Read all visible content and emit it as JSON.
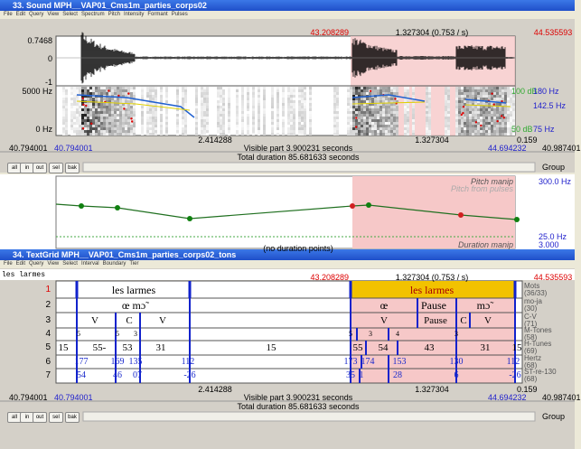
{
  "sound_window": {
    "title": "33. Sound MPH__VAP01_Cms1m_parties_corps02",
    "menu": [
      "File",
      "Edit",
      "Query",
      "View",
      "Select",
      "Spectrum",
      "Pitch",
      "Intensity",
      "Formant",
      "Pulses"
    ],
    "selection_start": "43.208289",
    "selection_duration": "1.327304 (0.753 / s)",
    "selection_end": "44.535593",
    "amplitude_labels": [
      "0.7468",
      "0",
      "-1"
    ],
    "frequency_labels": [
      "5000 Hz",
      "0 Hz"
    ],
    "right_labels": [
      "100 dB",
      "180 Hz",
      "142.5 Hz",
      "50 dB",
      "75 Hz"
    ],
    "time_labels": [
      "2.414288",
      "1.327304",
      "0.159"
    ],
    "window_start": "40.794001",
    "visible_start": "40.794001",
    "visible_part": "Visible part 3.900231 seconds",
    "visible_end": "44.694232",
    "window_end": "40.987401",
    "total_duration": "Total duration 85.681633 seconds",
    "buttons": [
      "all",
      "in",
      "out",
      "sel",
      "bak"
    ],
    "group": "Group"
  },
  "manipulation": {
    "pitch_label": "Pitch manip",
    "pitch_from": "Pitch from pulses",
    "pitch_top": "300.0 Hz",
    "pitch_bottom": "25.0 Hz",
    "duration_note": "(no duration points)",
    "duration_label": "Duration manip",
    "duration_value": "3.000"
  },
  "textgrid_window": {
    "title": "34. TextGrid MPH__VAP01_Cms1m_parties_corps02_tons",
    "menu": [
      "File",
      "Edit",
      "Query",
      "View",
      "Select",
      "Interval",
      "Boundary",
      "Tier"
    ],
    "text_field": "les larmes",
    "selection_start": "43.208289",
    "selection_duration": "1.327304 (0.753 / s)",
    "selection_end": "44.535593",
    "tiers": [
      {
        "number": "1",
        "name": "Mots",
        "count": "(36/33)",
        "intervals": [
          "les larmes",
          "les larmes"
        ]
      },
      {
        "number": "2",
        "name": "mo-ja",
        "count": "(30)",
        "intervals": [
          "œ mɔ̃",
          "œ",
          "Pause",
          "mɔ̃"
        ]
      },
      {
        "number": "3",
        "name": "C-V",
        "count": "(71)",
        "intervals": [
          "V",
          "C",
          "V",
          "V",
          "Pause",
          "C",
          "V"
        ]
      },
      {
        "number": "4",
        "name": "M-Tones",
        "count": "(58)",
        "intervals": [
          "5",
          "5",
          "3",
          "5",
          "3",
          "4",
          "3"
        ]
      },
      {
        "number": "5",
        "name": "H-Tunes",
        "count": "(69)",
        "intervals": [
          "15",
          "55-",
          "53",
          "31",
          "15",
          "55",
          "54",
          "43",
          "31",
          "15"
        ]
      },
      {
        "number": "6",
        "name": "Hertz",
        "count": "(68)",
        "intervals": [
          "177",
          "169",
          "135",
          "112",
          "173",
          "174",
          "153",
          "130",
          "112"
        ]
      },
      {
        "number": "7",
        "name": "ST-re-130",
        "count": "(68)",
        "intervals": [
          "54",
          "46",
          "07",
          "-26",
          "35",
          "1",
          "28",
          "6",
          "-26"
        ]
      }
    ],
    "time_labels": [
      "2.414288",
      "1.327304",
      "0.159"
    ],
    "window_start": "40.794001",
    "visible_start": "40.794001",
    "visible_part": "Visible part 3.900231 seconds",
    "visible_end": "44.694232",
    "window_end": "40.987401",
    "total_duration": "Total duration 85.681633 seconds",
    "buttons": [
      "all",
      "in",
      "out",
      "sel",
      "bak"
    ],
    "group": "Group"
  }
}
